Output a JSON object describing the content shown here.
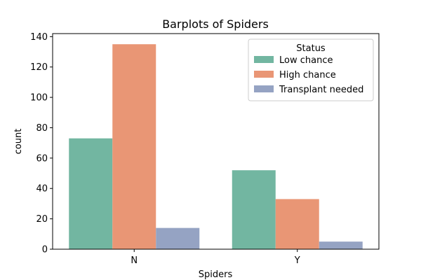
{
  "chart_data": {
    "type": "bar",
    "title": "Barplots of Spiders",
    "xlabel": "Spiders",
    "ylabel": "count",
    "categories": [
      "N",
      "Y"
    ],
    "ylim": [
      0,
      142
    ],
    "yticks": [
      0,
      20,
      40,
      60,
      80,
      100,
      120,
      140
    ],
    "legend": {
      "title": "Status",
      "placement": "top-right"
    },
    "series": [
      {
        "name": "Low chance",
        "color": "#72b6a1",
        "values": [
          73,
          52
        ]
      },
      {
        "name": "High chance",
        "color": "#e99675",
        "values": [
          135,
          33
        ]
      },
      {
        "name": "Transplant needed",
        "color": "#95a3c3",
        "values": [
          14,
          5
        ]
      }
    ]
  }
}
